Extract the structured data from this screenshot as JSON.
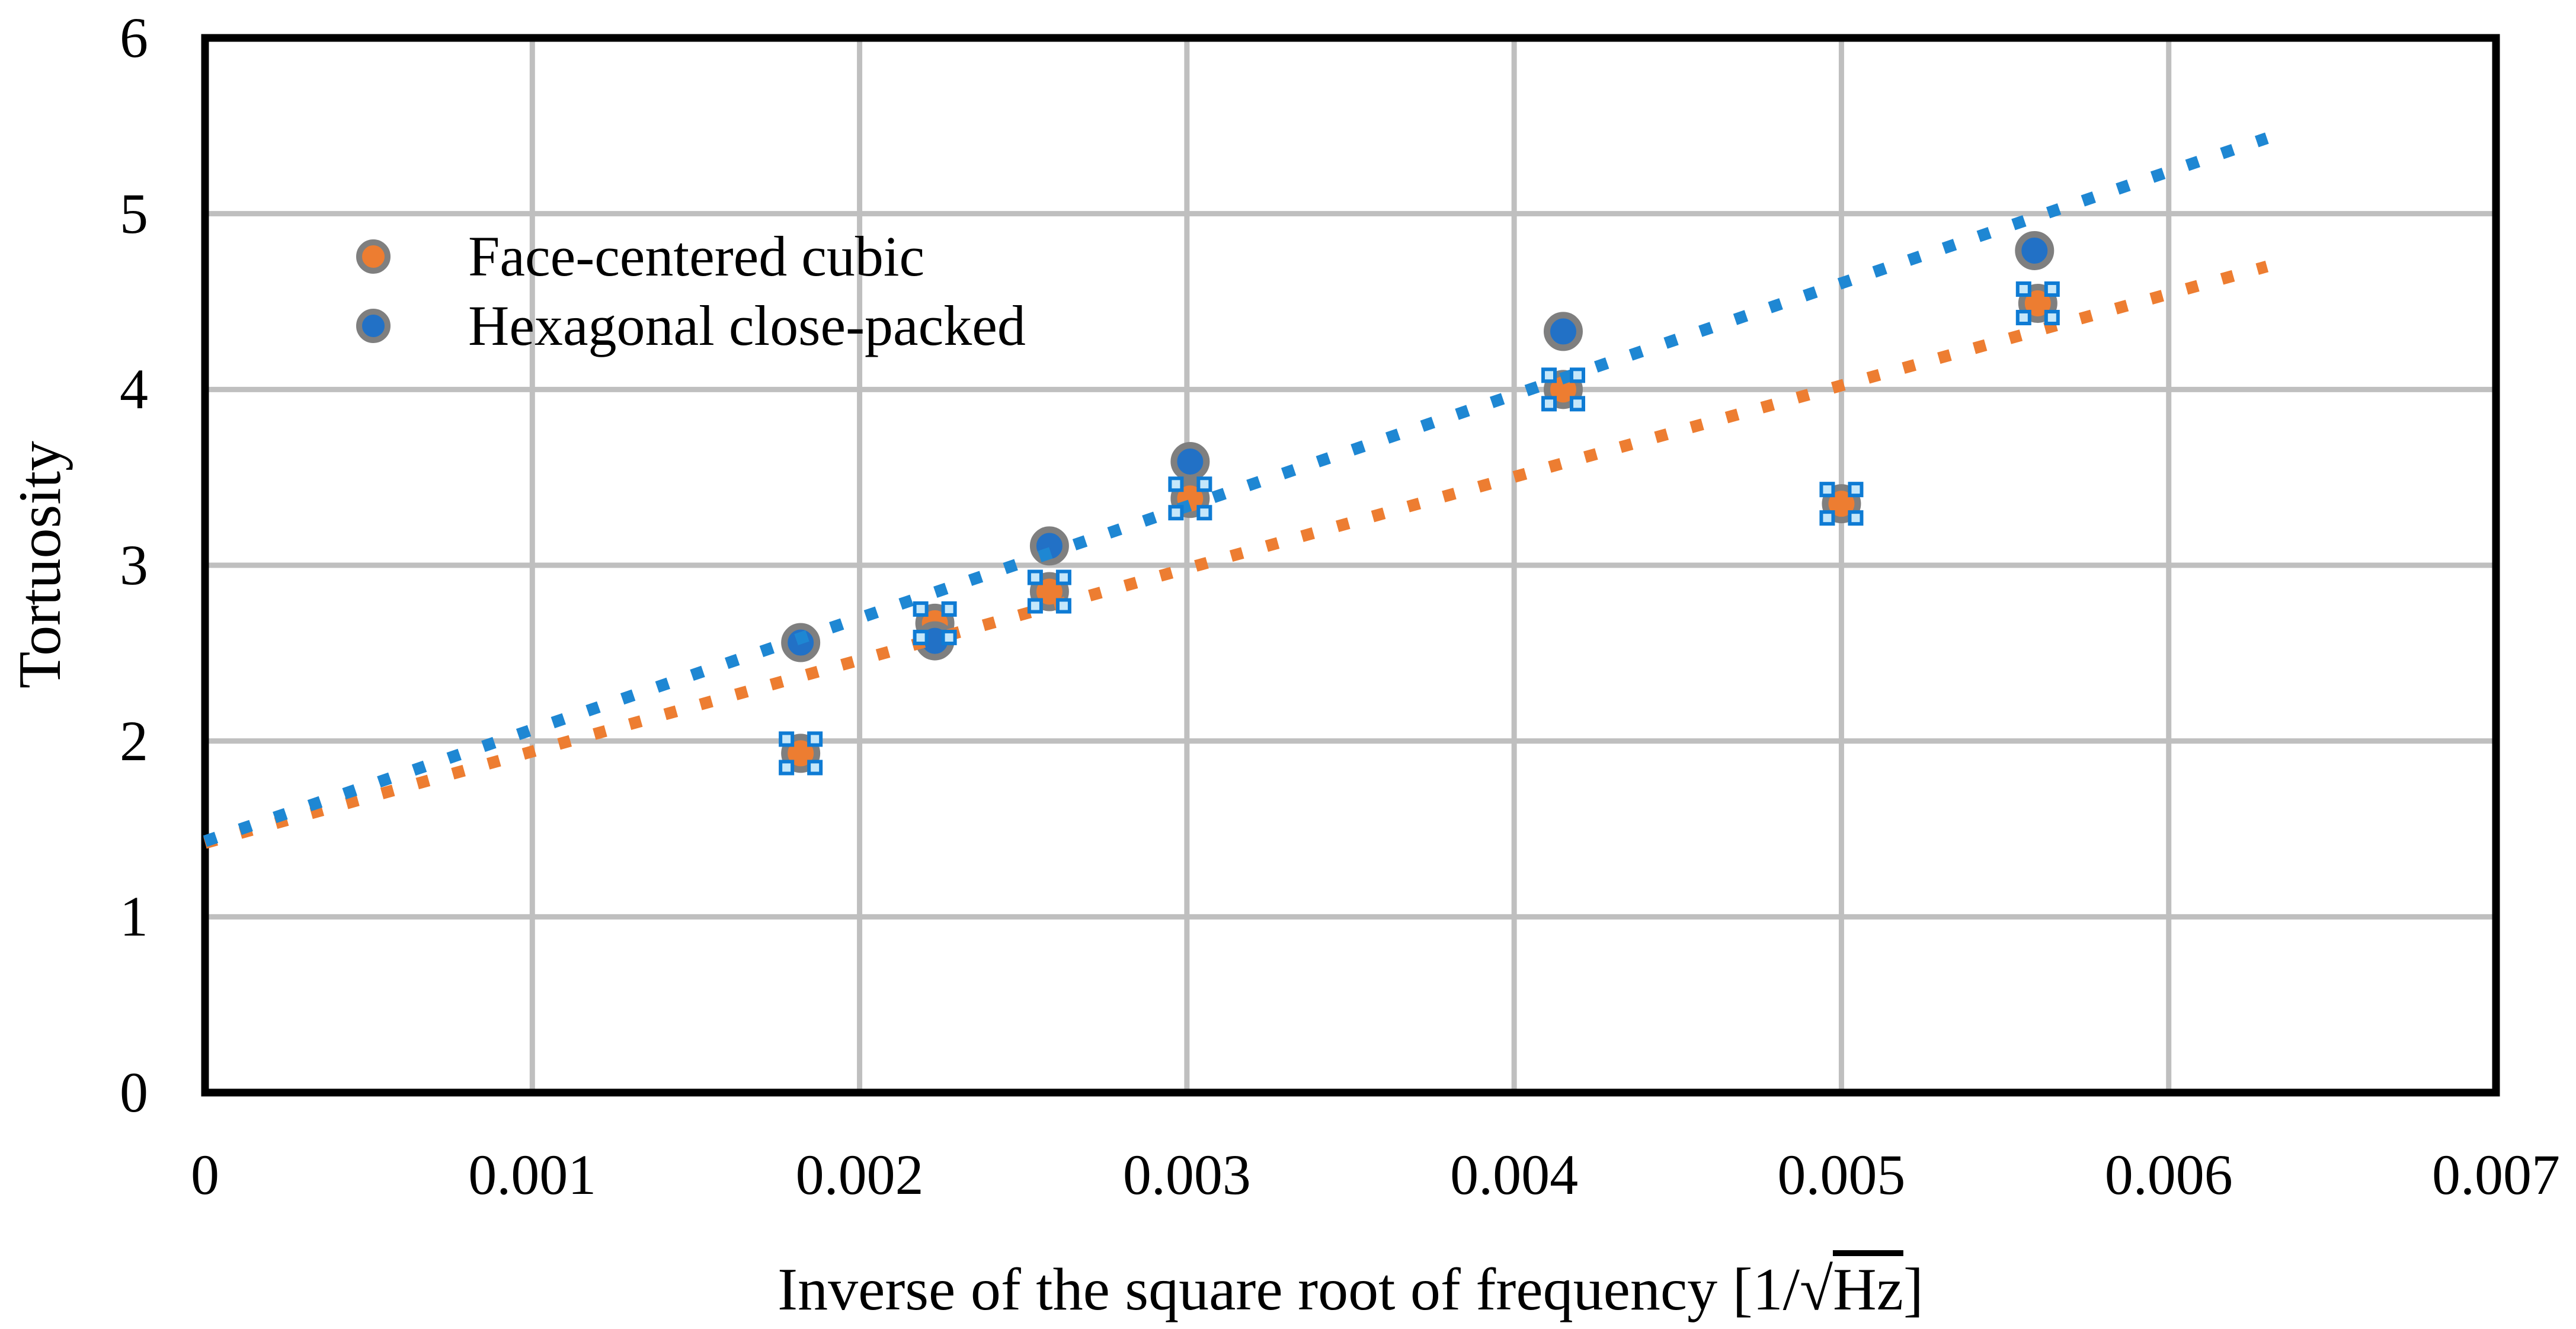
{
  "yaxis": {
    "title": "Tortuosity",
    "min": 0,
    "max": 6,
    "tick_values": [
      0,
      1,
      2,
      3,
      4,
      5,
      6
    ],
    "tick_labels": [
      "0",
      "1",
      "2",
      "3",
      "4",
      "5",
      "6"
    ]
  },
  "xaxis": {
    "title_prefix": "Inverse of the square root of frequency [1/√",
    "title_radicand": "Hz",
    "title_suffix": "]",
    "min": 0,
    "max": 0.007,
    "tick_values": [
      0,
      0.001,
      0.002,
      0.003,
      0.004,
      0.005,
      0.006,
      0.007
    ],
    "tick_labels": [
      "0",
      "0.001",
      "0.002",
      "0.003",
      "0.004",
      "0.005",
      "0.006",
      "0.007"
    ]
  },
  "legend": {
    "items": [
      {
        "label": "Face-centered cubic",
        "color": "#ED7D31"
      },
      {
        "label": "Hexagonal close-packed",
        "color": "#2271C6"
      }
    ]
  },
  "ui": {
    "grid_color": "#BFBFBF",
    "axis_border_color": "#000000",
    "marker_stroke_color": "#7F7F7F",
    "selection_handle_fill": "#C5E7FA",
    "selection_handle_stroke": "#0E7BD4",
    "background": "#FFFFFF"
  },
  "chart_data": {
    "type": "scatter",
    "title": "",
    "xlabel": "Inverse of the square root of frequency [1/√Hz]",
    "ylabel": "Tortuosity",
    "xlim": [
      0,
      0.007
    ],
    "ylim": [
      0,
      6
    ],
    "grid": true,
    "legend_position": "top-left-inside",
    "gridlines": {
      "x_values": [
        0.001,
        0.002,
        0.003,
        0.004,
        0.005,
        0.006
      ],
      "y_values": [
        1,
        2,
        3,
        4,
        5
      ]
    },
    "series": [
      {
        "name": "Face-centered cubic",
        "color": "#ED7D31",
        "marker": "circle",
        "selected": true,
        "points": [
          [
            0.00182,
            1.93
          ],
          [
            0.00223,
            2.67
          ],
          [
            0.00258,
            2.85
          ],
          [
            0.00301,
            3.38
          ],
          [
            0.00415,
            4.0
          ],
          [
            0.005,
            3.35
          ],
          [
            0.0056,
            4.49
          ]
        ],
        "trendline": {
          "style": "dotted",
          "color": "#ED7D31",
          "x_start": 0,
          "y_start": 1.42,
          "x_end": 0.0063,
          "y_end": 4.7
        }
      },
      {
        "name": "Hexagonal close-packed",
        "color": "#2271C6",
        "marker": "circle",
        "selected": false,
        "points": [
          [
            0.00182,
            2.56
          ],
          [
            0.00223,
            2.57
          ],
          [
            0.00258,
            3.11
          ],
          [
            0.00301,
            3.59
          ],
          [
            0.00415,
            4.33
          ],
          [
            0.00559,
            4.79
          ]
        ],
        "trendline": {
          "style": "dotted",
          "color": "#1E87D3",
          "x_start": 0,
          "y_start": 1.43,
          "x_end": 0.0063,
          "y_end": 5.43
        }
      }
    ]
  }
}
